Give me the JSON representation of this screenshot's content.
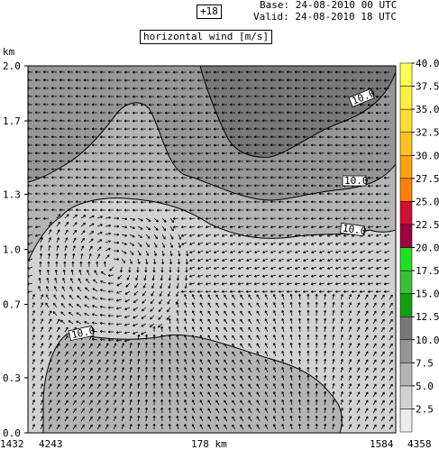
{
  "header": {
    "forecast_step": "+18",
    "base": "Base: 24-08-2010  00 UTC",
    "valid": "Valid: 24-08-2010  18 UTC",
    "title": "horizontal wind [m/s]"
  },
  "chart_data": {
    "type": "heatmap",
    "title": "horizontal wind [m/s]",
    "ylabel": "km",
    "ylim": [
      0.0,
      2.0
    ],
    "yticks": [
      "0.0",
      "0.3",
      "0.7",
      "1.0",
      "1.3",
      "1.7",
      "2.0"
    ],
    "x_labels": {
      "left_point": "1432",
      "left_station": "4243",
      "distance": "178 km",
      "right_point": "1584",
      "right_station": "4358"
    },
    "contour_labels": [
      "10.0",
      "10.0",
      "10.0",
      "10.0"
    ],
    "colorbar": {
      "levels": [
        "2.5",
        "5.0",
        "7.5",
        "10.0",
        "12.5",
        "15.0",
        "17.5",
        "20.0",
        "22.5",
        "25.0",
        "27.5",
        "30.0",
        "32.5",
        "35.0",
        "37.5",
        "40.0"
      ],
      "colors": [
        "#ececec",
        "#d2d2d2",
        "#b4b4b4",
        "#969696",
        "#787878",
        "#10a010",
        "#38c038",
        "#20e020",
        "#a00040",
        "#d01030",
        "#ff8000",
        "#ffa010",
        "#ffc020",
        "#ffdd30",
        "#fff040",
        "#ffff50"
      ]
    }
  }
}
